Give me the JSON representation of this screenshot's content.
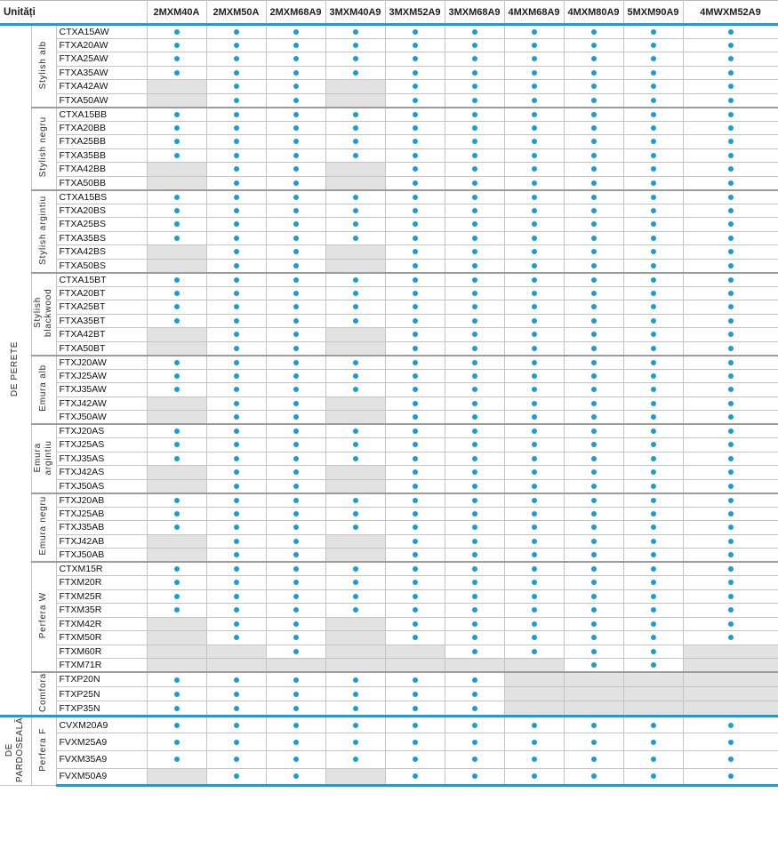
{
  "header": {
    "unit_label": "Unități",
    "columns": [
      "2MXM40A",
      "2MXM50A",
      "2MXM68A9",
      "3MXM40A9",
      "3MXM52A9",
      "3MXM68A9",
      "4MXM68A9",
      "4MXM80A9",
      "5MXM90A9",
      "4MWXM52A9"
    ]
  },
  "legend_semantics": {
    "dot": "compatible",
    "gray": "not-available"
  },
  "colors": {
    "accent": "#189dd9",
    "na_cell": "#e2e2e2"
  },
  "sections": [
    {
      "label_lines": [
        "DE PERETE"
      ],
      "groups": [
        {
          "name": "Stylish alb",
          "rows": [
            {
              "model": "CTXA15AW",
              "compat": [
                1,
                1,
                1,
                1,
                1,
                1,
                1,
                1,
                1,
                1
              ]
            },
            {
              "model": "FTXA20AW",
              "compat": [
                1,
                1,
                1,
                1,
                1,
                1,
                1,
                1,
                1,
                1
              ]
            },
            {
              "model": "FTXA25AW",
              "compat": [
                1,
                1,
                1,
                1,
                1,
                1,
                1,
                1,
                1,
                1
              ]
            },
            {
              "model": "FTXA35AW",
              "compat": [
                1,
                1,
                1,
                1,
                1,
                1,
                1,
                1,
                1,
                1
              ]
            },
            {
              "model": "FTXA42AW",
              "compat": [
                0,
                1,
                1,
                0,
                1,
                1,
                1,
                1,
                1,
                1
              ]
            },
            {
              "model": "FTXA50AW",
              "compat": [
                0,
                1,
                1,
                0,
                1,
                1,
                1,
                1,
                1,
                1
              ]
            }
          ]
        },
        {
          "name": "Stylish negru",
          "rows": [
            {
              "model": "CTXA15BB",
              "compat": [
                1,
                1,
                1,
                1,
                1,
                1,
                1,
                1,
                1,
                1
              ]
            },
            {
              "model": "FTXA20BB",
              "compat": [
                1,
                1,
                1,
                1,
                1,
                1,
                1,
                1,
                1,
                1
              ]
            },
            {
              "model": "FTXA25BB",
              "compat": [
                1,
                1,
                1,
                1,
                1,
                1,
                1,
                1,
                1,
                1
              ]
            },
            {
              "model": "FTXA35BB",
              "compat": [
                1,
                1,
                1,
                1,
                1,
                1,
                1,
                1,
                1,
                1
              ]
            },
            {
              "model": "FTXA42BB",
              "compat": [
                0,
                1,
                1,
                0,
                1,
                1,
                1,
                1,
                1,
                1
              ]
            },
            {
              "model": "FTXA50BB",
              "compat": [
                0,
                1,
                1,
                0,
                1,
                1,
                1,
                1,
                1,
                1
              ]
            }
          ]
        },
        {
          "name": "Stylish argintiu",
          "rows": [
            {
              "model": "CTXA15BS",
              "compat": [
                1,
                1,
                1,
                1,
                1,
                1,
                1,
                1,
                1,
                1
              ]
            },
            {
              "model": "FTXA20BS",
              "compat": [
                1,
                1,
                1,
                1,
                1,
                1,
                1,
                1,
                1,
                1
              ]
            },
            {
              "model": "FTXA25BS",
              "compat": [
                1,
                1,
                1,
                1,
                1,
                1,
                1,
                1,
                1,
                1
              ]
            },
            {
              "model": "FTXA35BS",
              "compat": [
                1,
                1,
                1,
                1,
                1,
                1,
                1,
                1,
                1,
                1
              ]
            },
            {
              "model": "FTXA42BS",
              "compat": [
                0,
                1,
                1,
                0,
                1,
                1,
                1,
                1,
                1,
                1
              ]
            },
            {
              "model": "FTXA50BS",
              "compat": [
                0,
                1,
                1,
                0,
                1,
                1,
                1,
                1,
                1,
                1
              ]
            }
          ]
        },
        {
          "name": "Stylish blackwood",
          "rows": [
            {
              "model": "CTXA15BT",
              "compat": [
                1,
                1,
                1,
                1,
                1,
                1,
                1,
                1,
                1,
                1
              ]
            },
            {
              "model": "FTXA20BT",
              "compat": [
                1,
                1,
                1,
                1,
                1,
                1,
                1,
                1,
                1,
                1
              ]
            },
            {
              "model": "FTXA25BT",
              "compat": [
                1,
                1,
                1,
                1,
                1,
                1,
                1,
                1,
                1,
                1
              ]
            },
            {
              "model": "FTXA35BT",
              "compat": [
                1,
                1,
                1,
                1,
                1,
                1,
                1,
                1,
                1,
                1
              ]
            },
            {
              "model": "FTXA42BT",
              "compat": [
                0,
                1,
                1,
                0,
                1,
                1,
                1,
                1,
                1,
                1
              ]
            },
            {
              "model": "FTXA50BT",
              "compat": [
                0,
                1,
                1,
                0,
                1,
                1,
                1,
                1,
                1,
                1
              ]
            }
          ]
        },
        {
          "name": "Emura alb",
          "rows": [
            {
              "model": "FTXJ20AW",
              "compat": [
                1,
                1,
                1,
                1,
                1,
                1,
                1,
                1,
                1,
                1
              ]
            },
            {
              "model": "FTXJ25AW",
              "compat": [
                1,
                1,
                1,
                1,
                1,
                1,
                1,
                1,
                1,
                1
              ]
            },
            {
              "model": "FTXJ35AW",
              "compat": [
                1,
                1,
                1,
                1,
                1,
                1,
                1,
                1,
                1,
                1
              ]
            },
            {
              "model": "FTXJ42AW",
              "compat": [
                0,
                1,
                1,
                0,
                1,
                1,
                1,
                1,
                1,
                1
              ]
            },
            {
              "model": "FTXJ50AW",
              "compat": [
                0,
                1,
                1,
                0,
                1,
                1,
                1,
                1,
                1,
                1
              ]
            }
          ]
        },
        {
          "name": "Emura argintiu",
          "rows": [
            {
              "model": "FTXJ20AS",
              "compat": [
                1,
                1,
                1,
                1,
                1,
                1,
                1,
                1,
                1,
                1
              ]
            },
            {
              "model": "FTXJ25AS",
              "compat": [
                1,
                1,
                1,
                1,
                1,
                1,
                1,
                1,
                1,
                1
              ]
            },
            {
              "model": "FTXJ35AS",
              "compat": [
                1,
                1,
                1,
                1,
                1,
                1,
                1,
                1,
                1,
                1
              ]
            },
            {
              "model": "FTXJ42AS",
              "compat": [
                0,
                1,
                1,
                0,
                1,
                1,
                1,
                1,
                1,
                1
              ]
            },
            {
              "model": "FTXJ50AS",
              "compat": [
                0,
                1,
                1,
                0,
                1,
                1,
                1,
                1,
                1,
                1
              ]
            }
          ]
        },
        {
          "name": "Emura negru",
          "rows": [
            {
              "model": "FTXJ20AB",
              "compat": [
                1,
                1,
                1,
                1,
                1,
                1,
                1,
                1,
                1,
                1
              ]
            },
            {
              "model": "FTXJ25AB",
              "compat": [
                1,
                1,
                1,
                1,
                1,
                1,
                1,
                1,
                1,
                1
              ]
            },
            {
              "model": "FTXJ35AB",
              "compat": [
                1,
                1,
                1,
                1,
                1,
                1,
                1,
                1,
                1,
                1
              ]
            },
            {
              "model": "FTXJ42AB",
              "compat": [
                0,
                1,
                1,
                0,
                1,
                1,
                1,
                1,
                1,
                1
              ]
            },
            {
              "model": "FTXJ50AB",
              "compat": [
                0,
                1,
                1,
                0,
                1,
                1,
                1,
                1,
                1,
                1
              ]
            }
          ]
        },
        {
          "name": "Perfera W",
          "rows": [
            {
              "model": "CTXM15R",
              "compat": [
                1,
                1,
                1,
                1,
                1,
                1,
                1,
                1,
                1,
                1
              ]
            },
            {
              "model": "FTXM20R",
              "compat": [
                1,
                1,
                1,
                1,
                1,
                1,
                1,
                1,
                1,
                1
              ]
            },
            {
              "model": "FTXM25R",
              "compat": [
                1,
                1,
                1,
                1,
                1,
                1,
                1,
                1,
                1,
                1
              ]
            },
            {
              "model": "FTXM35R",
              "compat": [
                1,
                1,
                1,
                1,
                1,
                1,
                1,
                1,
                1,
                1
              ]
            },
            {
              "model": "FTXM42R",
              "compat": [
                0,
                1,
                1,
                0,
                1,
                1,
                1,
                1,
                1,
                1
              ]
            },
            {
              "model": "FTXM50R",
              "compat": [
                0,
                1,
                1,
                0,
                1,
                1,
                1,
                1,
                1,
                1
              ]
            },
            {
              "model": "FTXM60R",
              "compat": [
                0,
                0,
                1,
                0,
                0,
                1,
                1,
                1,
                1,
                0
              ]
            },
            {
              "model": "FTXM71R",
              "compat": [
                0,
                0,
                0,
                0,
                0,
                0,
                0,
                1,
                1,
                0
              ]
            }
          ]
        },
        {
          "name": "Comfora",
          "rows": [
            {
              "model": "FTXP20N",
              "compat": [
                1,
                1,
                1,
                1,
                1,
                1,
                0,
                0,
                0,
                0
              ]
            },
            {
              "model": "FTXP25N",
              "compat": [
                1,
                1,
                1,
                1,
                1,
                1,
                0,
                0,
                0,
                0
              ]
            },
            {
              "model": "FTXP35N",
              "compat": [
                1,
                1,
                1,
                1,
                1,
                1,
                0,
                0,
                0,
                0
              ]
            }
          ]
        }
      ]
    },
    {
      "label_lines": [
        "DE",
        "PARDOSEALĂ"
      ],
      "groups": [
        {
          "name": "Perfera F",
          "rows": [
            {
              "model": "CVXM20A9",
              "compat": [
                1,
                1,
                1,
                1,
                1,
                1,
                1,
                1,
                1,
                1
              ]
            },
            {
              "model": "FVXM25A9",
              "compat": [
                1,
                1,
                1,
                1,
                1,
                1,
                1,
                1,
                1,
                1
              ]
            },
            {
              "model": "FVXM35A9",
              "compat": [
                1,
                1,
                1,
                1,
                1,
                1,
                1,
                1,
                1,
                1
              ]
            },
            {
              "model": "FVXM50A9",
              "compat": [
                0,
                1,
                1,
                0,
                1,
                1,
                1,
                1,
                1,
                1
              ]
            }
          ]
        }
      ]
    }
  ]
}
